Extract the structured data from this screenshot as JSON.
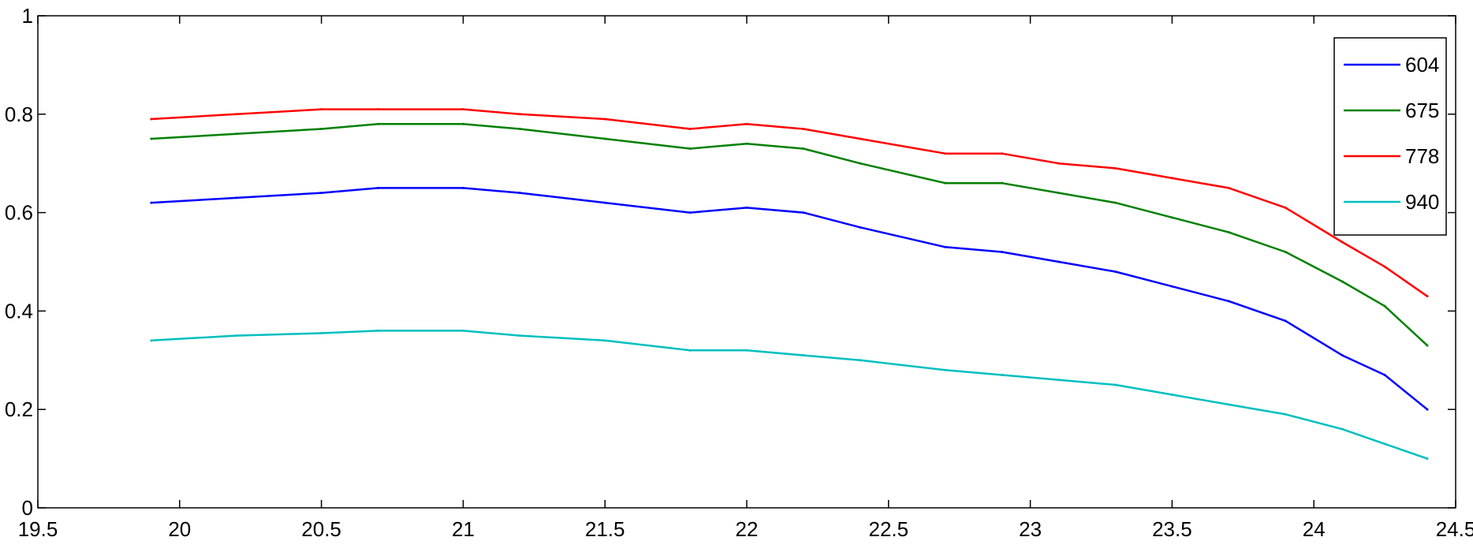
{
  "chart_data": {
    "type": "line",
    "title": "",
    "xlabel": "",
    "ylabel": "",
    "xlim": [
      19.5,
      24.5
    ],
    "ylim": [
      0,
      1
    ],
    "xticks": [
      19.5,
      20,
      20.5,
      21,
      21.5,
      22,
      22.5,
      23,
      23.5,
      24,
      24.5
    ],
    "xtick_labels": [
      "19.5",
      "20",
      "20.5",
      "21",
      "21.5",
      "22",
      "22.5",
      "23",
      "23.5",
      "24",
      "24.5"
    ],
    "yticks": [
      0,
      0.2,
      0.4,
      0.6,
      0.8,
      1
    ],
    "ytick_labels": [
      "0",
      "0.2",
      "0.4",
      "0.6",
      "0.8",
      "1"
    ],
    "grid": false,
    "legend_position": "top-right",
    "series": [
      {
        "name": "604",
        "color": "#0000ff",
        "x": [
          19.9,
          20.2,
          20.5,
          20.7,
          21.0,
          21.2,
          21.5,
          21.8,
          22.0,
          22.2,
          22.4,
          22.7,
          22.9,
          23.1,
          23.3,
          23.5,
          23.7,
          23.9,
          24.1,
          24.25,
          24.4
        ],
        "y": [
          0.62,
          0.63,
          0.64,
          0.65,
          0.65,
          0.64,
          0.62,
          0.6,
          0.61,
          0.6,
          0.57,
          0.53,
          0.52,
          0.5,
          0.48,
          0.45,
          0.42,
          0.38,
          0.31,
          0.27,
          0.2
        ]
      },
      {
        "name": "675",
        "color": "#008000",
        "x": [
          19.9,
          20.2,
          20.5,
          20.7,
          21.0,
          21.2,
          21.5,
          21.8,
          22.0,
          22.2,
          22.4,
          22.7,
          22.9,
          23.1,
          23.3,
          23.5,
          23.7,
          23.9,
          24.1,
          24.25,
          24.4
        ],
        "y": [
          0.75,
          0.76,
          0.77,
          0.78,
          0.78,
          0.77,
          0.75,
          0.73,
          0.74,
          0.73,
          0.7,
          0.66,
          0.66,
          0.64,
          0.62,
          0.59,
          0.56,
          0.52,
          0.46,
          0.41,
          0.33
        ]
      },
      {
        "name": "778",
        "color": "#ff0000",
        "x": [
          19.9,
          20.2,
          20.5,
          20.7,
          21.0,
          21.2,
          21.5,
          21.8,
          22.0,
          22.2,
          22.4,
          22.7,
          22.9,
          23.1,
          23.3,
          23.5,
          23.7,
          23.9,
          24.1,
          24.25,
          24.4
        ],
        "y": [
          0.79,
          0.8,
          0.81,
          0.81,
          0.81,
          0.8,
          0.79,
          0.77,
          0.78,
          0.77,
          0.75,
          0.72,
          0.72,
          0.7,
          0.69,
          0.67,
          0.65,
          0.61,
          0.54,
          0.49,
          0.43
        ]
      },
      {
        "name": "940",
        "color": "#00bfbf",
        "x": [
          19.9,
          20.2,
          20.5,
          20.7,
          21.0,
          21.2,
          21.5,
          21.8,
          22.0,
          22.2,
          22.4,
          22.7,
          22.9,
          23.1,
          23.3,
          23.5,
          23.7,
          23.9,
          24.1,
          24.25,
          24.4
        ],
        "y": [
          0.34,
          0.35,
          0.355,
          0.36,
          0.36,
          0.35,
          0.34,
          0.32,
          0.32,
          0.31,
          0.3,
          0.28,
          0.27,
          0.26,
          0.25,
          0.23,
          0.21,
          0.19,
          0.16,
          0.13,
          0.1
        ]
      }
    ]
  }
}
